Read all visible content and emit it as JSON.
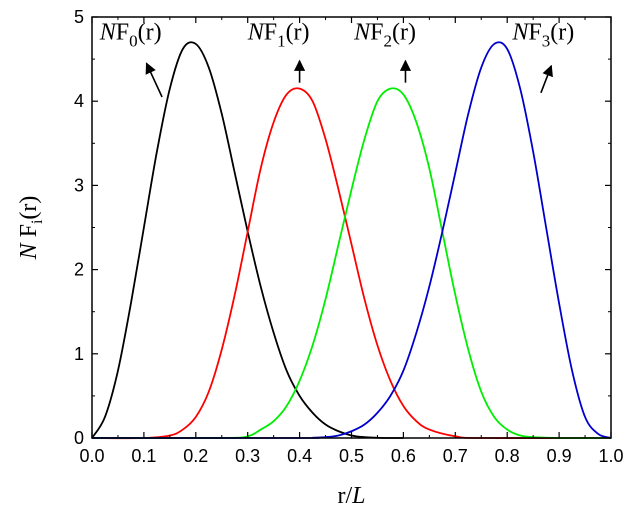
{
  "chart_data": {
    "type": "line",
    "xlabel": {
      "main": "r/",
      "italic": "L"
    },
    "ylabel": {
      "italic": "N",
      "main": " F",
      "sub": "i",
      "tail": "(r)"
    },
    "xlim": [
      0.0,
      1.0
    ],
    "ylim": [
      0,
      5
    ],
    "x_ticks": [
      "0.0",
      "0.1",
      "0.2",
      "0.3",
      "0.4",
      "0.5",
      "0.6",
      "0.7",
      "0.8",
      "0.9",
      "1.0"
    ],
    "y_ticks": [
      "0",
      "1",
      "2",
      "3",
      "4",
      "5"
    ],
    "grid": false,
    "legend": "none",
    "series": [
      {
        "color": "#000000",
        "x": [
          0.0,
          0.025,
          0.05,
          0.075,
          0.1,
          0.125,
          0.15,
          0.175,
          0.2,
          0.225,
          0.25,
          0.275,
          0.3,
          0.325,
          0.35,
          0.375,
          0.4,
          0.425,
          0.45,
          0.475,
          0.5,
          0.525,
          0.55,
          0.575,
          0.6
        ],
        "y": [
          0.0,
          0.25,
          0.8,
          1.6,
          2.5,
          3.4,
          4.15,
          4.62,
          4.68,
          4.4,
          3.85,
          3.15,
          2.45,
          1.8,
          1.25,
          0.8,
          0.5,
          0.3,
          0.16,
          0.08,
          0.03,
          0.01,
          0.003,
          0.0,
          0.0
        ]
      },
      {
        "color": "#ff0000",
        "x": [
          0.0,
          0.1,
          0.15,
          0.175,
          0.2,
          0.225,
          0.25,
          0.275,
          0.3,
          0.325,
          0.35,
          0.375,
          0.4,
          0.425,
          0.45,
          0.475,
          0.5,
          0.525,
          0.55,
          0.575,
          0.6,
          0.625,
          0.65,
          0.7,
          0.75,
          1.0
        ],
        "y": [
          0.0,
          0.0,
          0.03,
          0.1,
          0.25,
          0.55,
          1.05,
          1.7,
          2.45,
          3.2,
          3.75,
          4.08,
          4.15,
          4.0,
          3.55,
          2.95,
          2.3,
          1.65,
          1.1,
          0.68,
          0.38,
          0.2,
          0.1,
          0.02,
          0.0,
          0.0
        ]
      },
      {
        "color": "#00ee00",
        "x": [
          0.0,
          0.25,
          0.3,
          0.325,
          0.35,
          0.375,
          0.4,
          0.425,
          0.45,
          0.475,
          0.5,
          0.525,
          0.55,
          0.575,
          0.6,
          0.625,
          0.65,
          0.675,
          0.7,
          0.725,
          0.75,
          0.775,
          0.8,
          0.825,
          0.85,
          0.9,
          1.0
        ],
        "y": [
          0.0,
          0.0,
          0.02,
          0.1,
          0.2,
          0.38,
          0.68,
          1.1,
          1.65,
          2.3,
          2.95,
          3.55,
          4.0,
          4.15,
          4.08,
          3.75,
          3.2,
          2.45,
          1.7,
          1.05,
          0.55,
          0.25,
          0.1,
          0.03,
          0.01,
          0.0,
          0.0
        ]
      },
      {
        "color": "#0000cc",
        "x": [
          0.0,
          0.4,
          0.425,
          0.45,
          0.475,
          0.5,
          0.525,
          0.55,
          0.575,
          0.6,
          0.625,
          0.65,
          0.675,
          0.7,
          0.725,
          0.75,
          0.775,
          0.8,
          0.825,
          0.85,
          0.875,
          0.9,
          0.925,
          0.95,
          0.975,
          1.0
        ],
        "y": [
          0.0,
          0.0,
          0.003,
          0.01,
          0.03,
          0.08,
          0.16,
          0.3,
          0.5,
          0.8,
          1.25,
          1.8,
          2.45,
          3.15,
          3.85,
          4.4,
          4.68,
          4.62,
          4.15,
          3.4,
          2.5,
          1.6,
          0.8,
          0.25,
          0.05,
          0.0
        ]
      }
    ],
    "annotations": [
      {
        "italic": "N",
        "main": "F",
        "sub": "0",
        "tail": "(r)",
        "x": 0.015,
        "y": 4.73,
        "arrow_from": [
          0.135,
          4.05
        ],
        "arrow_to": [
          0.105,
          4.45
        ]
      },
      {
        "italic": "N",
        "main": "F",
        "sub": "1",
        "tail": "(r)",
        "x": 0.3,
        "y": 4.73,
        "arrow_from": [
          0.4,
          4.22
        ],
        "arrow_to": [
          0.4,
          4.48
        ]
      },
      {
        "italic": "N",
        "main": "F",
        "sub": "2",
        "tail": "(r)",
        "x": 0.505,
        "y": 4.73,
        "arrow_from": [
          0.604,
          4.22
        ],
        "arrow_to": [
          0.604,
          4.48
        ]
      },
      {
        "italic": "N",
        "main": "F",
        "sub": "3",
        "tail": "(r)",
        "x": 0.81,
        "y": 4.73,
        "arrow_from": [
          0.865,
          4.1
        ],
        "arrow_to": [
          0.885,
          4.42
        ]
      }
    ]
  }
}
